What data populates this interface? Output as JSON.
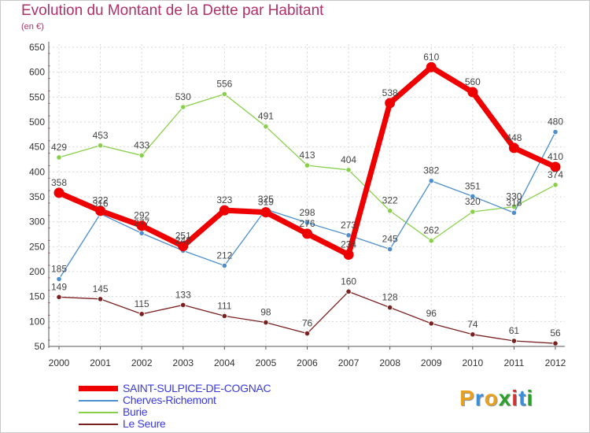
{
  "header": {
    "title": "Evolution du Montant de la Dette par Habitant",
    "unit": "(en €)"
  },
  "logo": {
    "letters": [
      "P",
      "r",
      "o",
      "x",
      "i",
      "t",
      "i"
    ],
    "colors": [
      "#e8a020",
      "#3a8fd8",
      "#e8a020",
      "#2aa02a",
      "#d83030",
      "#3a8fd8",
      "#2aa02a"
    ]
  },
  "chart_data": {
    "type": "line",
    "title": "Evolution du Montant de la Dette par Habitant",
    "ylabel": "(en €)",
    "xlabel": "",
    "ylim": [
      50,
      650
    ],
    "yticks": [
      50,
      100,
      150,
      200,
      250,
      300,
      350,
      400,
      450,
      500,
      550,
      600,
      650
    ],
    "grid": true,
    "legend_position": "bottom-left",
    "x": [
      "2000",
      "2001",
      "2002",
      "2003",
      "2004",
      "2005",
      "2006",
      "2007",
      "2008",
      "2009",
      "2010",
      "2011",
      "2012"
    ],
    "series": [
      {
        "name": "SAINT-SULPICE-DE-COGNAC",
        "color": "#ee0000",
        "values": [
          358,
          322,
          292,
          251,
          323,
          319,
          276,
          234,
          538,
          610,
          560,
          448,
          410
        ]
      },
      {
        "name": "Cherves-Richemont",
        "color": "#4d8fcc",
        "values": [
          185,
          316,
          277,
          242,
          212,
          325,
          298,
          273,
          245,
          382,
          351,
          318,
          480
        ]
      },
      {
        "name": "Burie",
        "color": "#88d04a",
        "values": [
          429,
          453,
          433,
          530,
          556,
          491,
          413,
          404,
          322,
          262,
          320,
          330,
          374
        ]
      },
      {
        "name": "Le Seure",
        "color": "#7a2020",
        "values": [
          149,
          145,
          115,
          133,
          111,
          98,
          76,
          160,
          128,
          96,
          74,
          61,
          56
        ]
      }
    ]
  }
}
